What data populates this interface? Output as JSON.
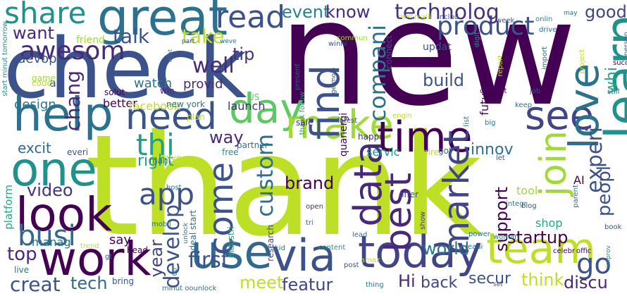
{
  "words": [
    {
      "text": "new",
      "color": "#440154"
    },
    {
      "text": "thank",
      "color": "#bddf26"
    },
    {
      "text": "check",
      "color": "#3b528b"
    },
    {
      "text": "great",
      "color": "#2c728e"
    },
    {
      "text": "share",
      "color": "#21918c"
    },
    {
      "text": "read",
      "color": "#3b528b"
    },
    {
      "text": "help",
      "color": "#2c728e"
    },
    {
      "text": "one",
      "color": "#21918c"
    },
    {
      "text": "look",
      "color": "#440154"
    },
    {
      "text": "work",
      "color": "#440154"
    },
    {
      "text": "use",
      "color": "#31688e"
    },
    {
      "text": "via",
      "color": "#3b528b"
    },
    {
      "text": "today",
      "color": "#414487"
    },
    {
      "text": "day",
      "color": "#5ec962"
    },
    {
      "text": "make",
      "color": "#a0da39"
    },
    {
      "text": "time",
      "color": "#440154"
    },
    {
      "text": "see",
      "color": "#414487"
    },
    {
      "text": "learn",
      "color": "#21918c"
    },
    {
      "text": "love",
      "color": "#2c728e"
    },
    {
      "text": "need",
      "color": "#3b528b"
    },
    {
      "text": "thi",
      "color": "#1fa187"
    },
    {
      "text": "team",
      "color": "#bddf26"
    },
    {
      "text": "app",
      "color": "#3b528b"
    },
    {
      "text": "busi",
      "color": "#31688e"
    },
    {
      "text": "come",
      "color": "#3b528b"
    },
    {
      "text": "data",
      "color": "#482878"
    },
    {
      "text": "best",
      "color": "#482878"
    },
    {
      "text": "join",
      "color": "#a0da39"
    },
    {
      "text": "market",
      "color": "#414487"
    },
    {
      "text": "find",
      "color": "#3b528b"
    },
    {
      "text": "go",
      "color": "#3b528b"
    },
    {
      "text": "product",
      "color": "#3b528b"
    },
    {
      "text": "technolog",
      "color": "#46337e"
    },
    {
      "text": "event",
      "color": "#26828e"
    },
    {
      "text": "know",
      "color": "#482878"
    },
    {
      "text": "good",
      "color": "#414487"
    },
    {
      "text": "want",
      "color": "#482878"
    },
    {
      "text": "talk",
      "color": "#3b528b"
    },
    {
      "text": "take",
      "color": "#bddf26"
    },
    {
      "text": "tip",
      "color": "#46337e"
    },
    {
      "text": "awesom",
      "color": "#482878"
    },
    {
      "text": "well",
      "color": "#482878"
    },
    {
      "text": "build",
      "color": "#3b528b"
    },
    {
      "text": "compani",
      "color": "#2c728e"
    },
    {
      "text": "chang",
      "color": "#482878"
    },
    {
      "text": "whi",
      "color": "#22a884"
    },
    {
      "text": "experi",
      "color": "#3b528b"
    },
    {
      "text": "innov",
      "color": "#2c728e"
    },
    {
      "text": "way",
      "color": "#482878"
    },
    {
      "text": "right",
      "color": "#1fa187"
    },
    {
      "text": "video",
      "color": "#46337e"
    },
    {
      "text": "brand",
      "color": "#440154"
    },
    {
      "text": "custom",
      "color": "#2c728e"
    },
    {
      "text": "peopl",
      "color": "#3b528b"
    },
    {
      "text": "startup",
      "color": "#440154"
    },
    {
      "text": "support",
      "color": "#440154"
    },
    {
      "text": "top",
      "color": "#482878"
    },
    {
      "text": "first",
      "color": "#3b528b"
    },
    {
      "text": "develop",
      "color": "#3b528b"
    },
    {
      "text": "meet",
      "color": "#bddf26"
    },
    {
      "text": "featur",
      "color": "#414487"
    },
    {
      "text": "world",
      "color": "#2c728e"
    },
    {
      "text": "tech",
      "color": "#31688e"
    },
    {
      "text": "creat",
      "color": "#3b528b"
    },
    {
      "text": "Hi",
      "color": "#482878"
    },
    {
      "text": "back",
      "color": "#414487"
    },
    {
      "text": "secur",
      "color": "#3b528b"
    },
    {
      "text": "think",
      "color": "#bddf26"
    },
    {
      "text": "discu",
      "color": "#482878"
    },
    {
      "text": "devop",
      "color": "#3b528b"
    },
    {
      "text": "excit",
      "color": "#31688e"
    },
    {
      "text": "design",
      "color": "#2c728e"
    },
    {
      "text": "watch",
      "color": "#2c728e"
    },
    {
      "text": "provid",
      "color": "#482878"
    },
    {
      "text": "better",
      "color": "#440154"
    },
    {
      "text": "facebook",
      "color": "#bddf26"
    },
    {
      "text": "launch",
      "color": "#46337e"
    },
    {
      "text": "updat",
      "color": "#3b528b"
    },
    {
      "text": "servic",
      "color": "#21918c"
    },
    {
      "text": "year",
      "color": "#414487"
    },
    {
      "text": "say",
      "color": "#440154"
    },
    {
      "text": "manag",
      "color": "#2c728e"
    },
    {
      "text": "shop",
      "color": "#22a884"
    },
    {
      "text": "tool",
      "color": "#a0da39"
    },
    {
      "text": "ad",
      "color": "#3b528b"
    },
    {
      "text": "futur",
      "color": "#440154"
    },
    {
      "text": "AI",
      "color": "#440154"
    },
    {
      "text": "platform",
      "color": "#22a884"
    },
    {
      "text": "game",
      "color": "#a0da39"
    },
    {
      "text": "code",
      "color": "#bddf26"
    },
    {
      "text": "friend",
      "color": "#a0da39"
    },
    {
      "text": "start minut tomorrow",
      "color": "#21918c"
    },
    {
      "text": "part",
      "color": "#3b528b"
    },
    {
      "text": "dont",
      "color": "#2c728e"
    },
    {
      "text": "weve",
      "color": "#2c728e"
    },
    {
      "text": "win",
      "color": "#482878"
    },
    {
      "text": "solut",
      "color": "#440154"
    },
    {
      "text": "US",
      "color": "#5ec962"
    },
    {
      "text": "new york",
      "color": "#2c728e"
    },
    {
      "text": "plan",
      "color": "#bddf26"
    },
    {
      "text": "free",
      "color": "#21918c"
    },
    {
      "text": "partner",
      "color": "#2c728e"
    },
    {
      "text": "quanergi",
      "color": "#440154"
    },
    {
      "text": "hire",
      "color": "#bddf26"
    },
    {
      "text": "got",
      "color": "#2c728e"
    },
    {
      "text": "mani",
      "color": "#31688e"
    },
    {
      "text": "give",
      "color": "#bddf26"
    },
    {
      "text": "everi",
      "color": "#3b528b"
    },
    {
      "text": "happi",
      "color": "#482878"
    },
    {
      "text": "offer",
      "color": "#3b528b"
    },
    {
      "text": "open",
      "color": "#46337e"
    },
    {
      "text": "tri",
      "color": "#2c728e"
    },
    {
      "text": "mobil",
      "color": "#2c728e"
    },
    {
      "text": "host",
      "color": "#2c728e"
    },
    {
      "text": "industri",
      "color": "#22a884"
    },
    {
      "text": "research",
      "color": "#414487"
    },
    {
      "text": "deal start",
      "color": "#2c728e"
    },
    {
      "text": "unlock",
      "color": "#2c728e"
    },
    {
      "text": "kid",
      "color": "#2c728e"
    },
    {
      "text": "content",
      "color": "#21918c"
    },
    {
      "text": "lead",
      "color": "#2c728e"
    },
    {
      "text": "amaz",
      "color": "#bddf26"
    },
    {
      "text": "post",
      "color": "#3b528b"
    },
    {
      "text": "thing",
      "color": "#2c728e"
    },
    {
      "text": "minut oounlock",
      "color": "#2c728e"
    },
    {
      "text": "trend",
      "color": "#bddf26"
    },
    {
      "text": "head",
      "color": "#440154"
    },
    {
      "text": "gt",
      "color": "#3b528b"
    },
    {
      "text": "bring",
      "color": "#3b528b"
    },
    {
      "text": "live",
      "color": "#2c728e"
    },
    {
      "text": "00",
      "color": "#2c728e"
    },
    {
      "text": "next",
      "color": "#bddf26"
    },
    {
      "text": "realli",
      "color": "#bddf26"
    },
    {
      "text": "includ",
      "color": "#3b528b"
    },
    {
      "text": "week",
      "color": "#3b528b"
    },
    {
      "text": "onlin",
      "color": "#21918c"
    },
    {
      "text": "drive",
      "color": "#2c728e"
    },
    {
      "text": "may",
      "color": "#2c728e"
    },
    {
      "text": "person",
      "color": "#31688e"
    },
    {
      "text": "commun",
      "color": "#a0da39"
    },
    {
      "text": "connect",
      "color": "#3b528b"
    },
    {
      "text": "winni",
      "color": "#3b528b"
    },
    {
      "text": "digit",
      "color": "#21918c"
    },
    {
      "text": "report",
      "color": "#bddf26"
    },
    {
      "text": "import",
      "color": "#31688e"
    },
    {
      "text": "project",
      "color": "#bddf26"
    },
    {
      "text": "success",
      "color": "#440154"
    },
    {
      "text": "still",
      "color": "#2c728e"
    },
    {
      "text": "job",
      "color": "#3b528b"
    },
    {
      "text": "keep",
      "color": "#2c728e"
    },
    {
      "text": "congrat",
      "color": "#440154"
    },
    {
      "text": "present",
      "color": "#3b528b"
    },
    {
      "text": "thank follow",
      "color": "#21918c"
    },
    {
      "text": "getmojo",
      "color": "#3b528b"
    },
    {
      "text": "latest",
      "color": "#3b528b"
    },
    {
      "text": "list",
      "color": "#2c728e"
    },
    {
      "text": "big",
      "color": "#2c728e"
    },
    {
      "text": "engin",
      "color": "#bddf26"
    },
    {
      "text": "sale",
      "color": "#482878"
    },
    {
      "text": "let",
      "color": "#3b528b"
    },
    {
      "text": "integr",
      "color": "#2c728e"
    },
    {
      "text": "blog",
      "color": "#3b528b"
    },
    {
      "text": "show",
      "color": "#46337e"
    },
    {
      "text": "parent",
      "color": "#2c728e"
    },
    {
      "text": "power",
      "color": "#2c728e"
    },
    {
      "text": "woman",
      "color": "#2c728e"
    },
    {
      "text": "readi",
      "color": "#2c728e"
    },
    {
      "text": "celebr",
      "color": "#440154"
    },
    {
      "text": "offic",
      "color": "#440154"
    },
    {
      "text": "book",
      "color": "#3b528b"
    },
    {
      "text": "improv",
      "color": "#21918c"
    },
    {
      "text": "set",
      "color": "#3b528b"
    }
  ]
}
